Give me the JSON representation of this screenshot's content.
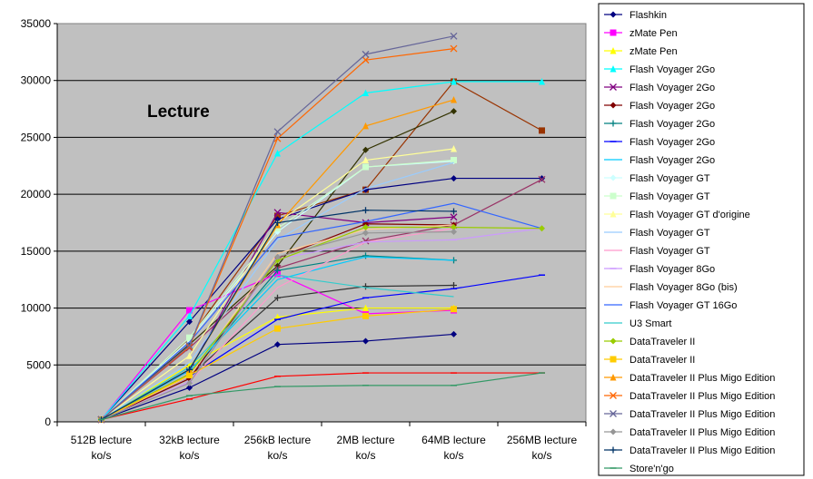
{
  "chart_data": {
    "type": "line",
    "title": "Lecture",
    "xlabel": "",
    "ylabel": "",
    "ylim": [
      0,
      35000
    ],
    "yticks": [
      0,
      5000,
      10000,
      15000,
      20000,
      25000,
      30000,
      35000
    ],
    "grid": true,
    "legend_position": "right",
    "categories": [
      [
        "512B lecture",
        "ko/s"
      ],
      [
        "32kB lecture",
        "ko/s"
      ],
      [
        "256kB lecture",
        "ko/s"
      ],
      [
        "2MB lecture",
        "ko/s"
      ],
      [
        "64MB lecture",
        "ko/s"
      ],
      [
        "256MB lecture",
        "ko/s"
      ]
    ],
    "series": [
      {
        "name": "Flashkin",
        "color": "#000080",
        "marker": "diamond",
        "values": [
          200,
          3000,
          6800,
          7100,
          7700,
          null
        ]
      },
      {
        "name": "zMate Pen",
        "color": "#ff00ff",
        "marker": "square",
        "values": [
          200,
          9800,
          13000,
          9500,
          9800,
          null
        ]
      },
      {
        "name": "zMate Pen",
        "color": "#ffff00",
        "marker": "triangle",
        "values": [
          200,
          5000,
          9200,
          10000,
          10000,
          null
        ]
      },
      {
        "name": "Flash Voyager 2Go",
        "color": "#00ffff",
        "marker": "triangle",
        "values": [
          200,
          9300,
          23600,
          28900,
          29900,
          29900
        ]
      },
      {
        "name": "Flash Voyager 2Go",
        "color": "#800080",
        "marker": "x",
        "values": [
          200,
          4500,
          18400,
          17500,
          18000,
          null
        ]
      },
      {
        "name": "Flash Voyager 2Go",
        "color": "#800000",
        "marker": "diamond",
        "values": [
          200,
          3800,
          14400,
          17400,
          17300,
          null
        ]
      },
      {
        "name": "Flash Voyager 2Go",
        "color": "#008080",
        "marker": "plus",
        "values": [
          200,
          4200,
          13300,
          14600,
          14200,
          null
        ]
      },
      {
        "name": "Flash Voyager 2Go",
        "color": "#0000ff",
        "marker": "dash",
        "values": [
          200,
          4000,
          9000,
          10900,
          11700,
          12900
        ]
      },
      {
        "name": "Flash Voyager 2Go",
        "color": "#00ccff",
        "marker": "none",
        "values": [
          200,
          4500,
          12500,
          14500,
          14200,
          null
        ]
      },
      {
        "name": "Flash Voyager GT",
        "color": "#ccffff",
        "marker": "diamond",
        "values": [
          200,
          7200,
          16700,
          22400,
          22900,
          null
        ]
      },
      {
        "name": "Flash Voyager GT",
        "color": "#ccffcc",
        "marker": "square",
        "values": [
          200,
          7400,
          17000,
          22400,
          23000,
          null
        ]
      },
      {
        "name": "Flash Voyager GT d'origine",
        "color": "#ffff99",
        "marker": "triangle",
        "values": [
          200,
          5800,
          17500,
          23000,
          24000,
          null
        ]
      },
      {
        "name": "Flash Voyager GT",
        "color": "#99ccff",
        "marker": "none",
        "values": [
          200,
          5200,
          16000,
          20500,
          22800,
          null
        ]
      },
      {
        "name": "Flash Voyager GT",
        "color": "#ff99cc",
        "marker": "none",
        "values": [
          200,
          3500,
          11800,
          15800,
          17000,
          null
        ]
      },
      {
        "name": "Flash Voyager 8Go",
        "color": "#cc99ff",
        "marker": "dash",
        "values": [
          200,
          3500,
          14300,
          15800,
          16000,
          17000
        ]
      },
      {
        "name": "Flash Voyager 8Go (bis)",
        "color": "#ffcc99",
        "marker": "none",
        "values": [
          200,
          4000,
          14800,
          16900,
          17300,
          null
        ]
      },
      {
        "name": "Flash Voyager GT 16Go",
        "color": "#3366ff",
        "marker": "none",
        "values": [
          200,
          7000,
          16200,
          17600,
          19200,
          17000
        ]
      },
      {
        "name": "U3 Smart",
        "color": "#33cccc",
        "marker": "none",
        "values": [
          200,
          4800,
          12900,
          11800,
          11000,
          null
        ]
      },
      {
        "name": "DataTraveler II",
        "color": "#99cc00",
        "marker": "diamond",
        "values": [
          200,
          4200,
          14200,
          17100,
          17100,
          17000
        ]
      },
      {
        "name": "DataTraveler II",
        "color": "#ffcc00",
        "marker": "square",
        "values": [
          200,
          4100,
          8200,
          9300,
          9900,
          null
        ]
      },
      {
        "name": "DataTraveler II Plus Migo Edition",
        "color": "#ff9900",
        "marker": "triangle",
        "values": [
          200,
          4600,
          17300,
          26000,
          28300,
          null
        ]
      },
      {
        "name": "DataTraveler II Plus Migo Edition",
        "color": "#ff6600",
        "marker": "x",
        "values": [
          200,
          6600,
          24900,
          31800,
          32800,
          null
        ]
      },
      {
        "name": "DataTraveler II Plus Migo Edition",
        "color": "#666699",
        "marker": "x",
        "values": [
          200,
          6700,
          25500,
          32300,
          33900,
          null
        ]
      },
      {
        "name": "DataTraveler II Plus Migo Edition",
        "color": "#969696",
        "marker": "diamond",
        "values": [
          200,
          3400,
          14500,
          16600,
          16700,
          null
        ]
      },
      {
        "name": "DataTraveler II Plus Migo Edition",
        "color": "#003366",
        "marker": "plus",
        "values": [
          200,
          4600,
          17500,
          18600,
          18500,
          null
        ]
      },
      {
        "name": "Store'n'go",
        "color": "#339966",
        "marker": "dash",
        "values": [
          200,
          2300,
          3100,
          3200,
          3200,
          4300
        ]
      }
    ],
    "extra_lines": [
      {
        "color": "#ff0000",
        "marker": "dash",
        "values": [
          200,
          2000,
          4000,
          4300,
          4300,
          4300
        ]
      },
      {
        "color": "#993300",
        "marker": "square",
        "values": [
          200,
          7300,
          18100,
          20400,
          29900,
          25600
        ]
      },
      {
        "color": "#333300",
        "marker": "diamond",
        "values": [
          200,
          6800,
          13700,
          23900,
          27300,
          null
        ]
      },
      {
        "color": "#000080",
        "marker": "diamond",
        "values": [
          200,
          8800,
          17800,
          20400,
          21400,
          21400
        ]
      },
      {
        "color": "#333333",
        "marker": "plus",
        "values": [
          200,
          4000,
          10900,
          11900,
          12000,
          null
        ]
      },
      {
        "color": "#993366",
        "marker": "x",
        "values": [
          200,
          6500,
          13500,
          15900,
          17300,
          21300
        ]
      }
    ]
  }
}
